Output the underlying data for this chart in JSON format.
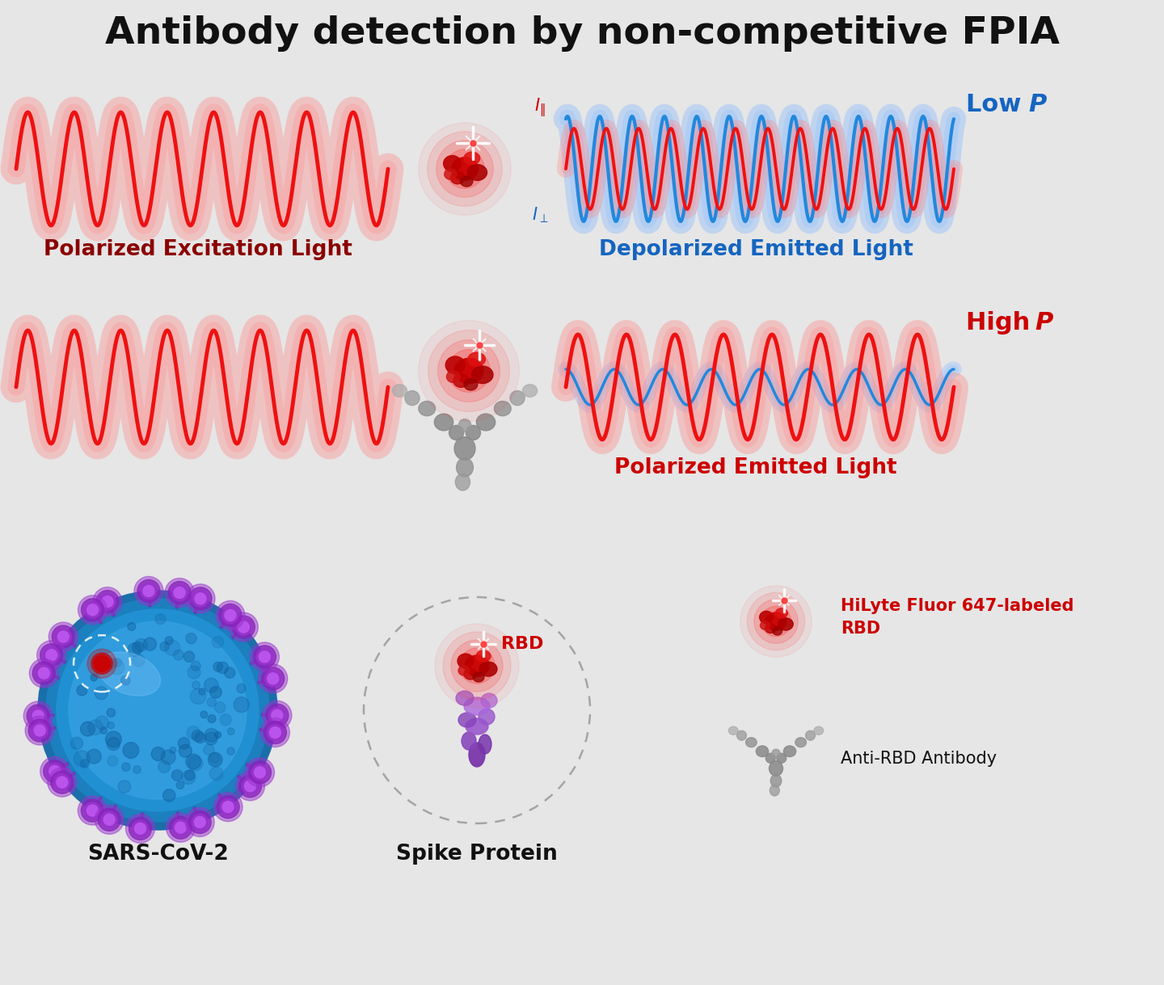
{
  "title": "Antibody detection by non-competitive FPIA",
  "title_fontsize": 34,
  "title_fontweight": "bold",
  "bg_color": "#e6e6e6",
  "label_colors": {
    "red": "#cc0000",
    "blue": "#1565c0",
    "black": "#111111",
    "dark_red": "#8b0000"
  },
  "wave_red": "#ee1111",
  "wave_blue": "#2288dd",
  "wave_glow_red": "#ff8888",
  "wave_glow_blue": "#88bbff",
  "section_labels": {
    "polarized_excitation": "Polarized Excitation Light",
    "depolarized": "Depolarized Emitted Light",
    "polarized_emitted": "Polarized Emitted Light",
    "low_p": "Low ",
    "low_p_italic": "P",
    "high_p": "High ",
    "high_p_italic": "P",
    "sars": "SARS-CoV-2",
    "spike": "Spike Protein",
    "rbd_label": "RBD",
    "hilyte_label": "HiLyte Fluor 647-labeled\nRBD",
    "anti_rbd": "Anti-RBD Antibody"
  }
}
